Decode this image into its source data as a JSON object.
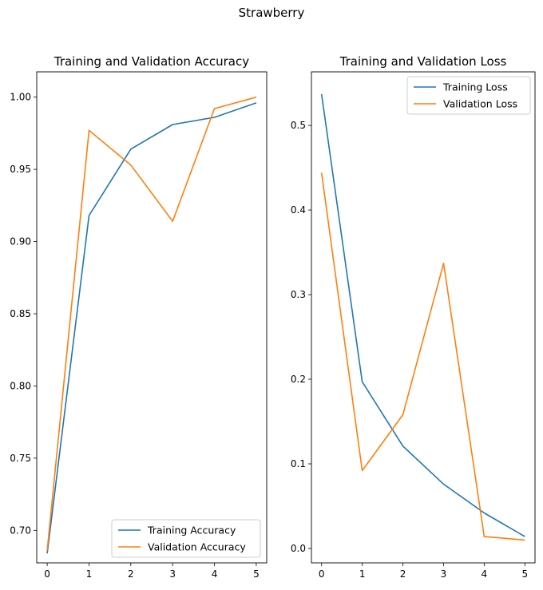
{
  "figure": {
    "suptitle": "Strawberry"
  },
  "colors": {
    "training": "#1f77b4",
    "validation": "#ff7f0e"
  },
  "chart_data": [
    {
      "type": "line",
      "title": "Training and Validation Accuracy",
      "xlabel": "",
      "ylabel": "",
      "x": [
        0,
        1,
        2,
        3,
        4,
        5
      ],
      "xticks": [
        "0",
        "1",
        "2",
        "3",
        "4",
        "5"
      ],
      "yticks": [
        "0.70",
        "0.75",
        "0.80",
        "0.85",
        "0.90",
        "0.95",
        "1.00"
      ],
      "xlim": [
        -0.25,
        5.25
      ],
      "ylim": [
        0.6775,
        1.0175
      ],
      "legend_loc": "lower right",
      "grid": false,
      "series": [
        {
          "name": "Training Accuracy",
          "color": "#1f77b4",
          "values": [
            0.684,
            0.918,
            0.964,
            0.981,
            0.986,
            0.996
          ]
        },
        {
          "name": "Validation Accuracy",
          "color": "#ff7f0e",
          "values": [
            0.686,
            0.977,
            0.953,
            0.914,
            0.992,
            1.0
          ]
        }
      ]
    },
    {
      "type": "line",
      "title": "Training and Validation Loss",
      "xlabel": "",
      "ylabel": "",
      "x": [
        0,
        1,
        2,
        3,
        4,
        5
      ],
      "xticks": [
        "0",
        "1",
        "2",
        "3",
        "4",
        "5"
      ],
      "yticks": [
        "0.0",
        "0.1",
        "0.2",
        "0.3",
        "0.4",
        "0.5"
      ],
      "xlim": [
        -0.25,
        5.25
      ],
      "ylim": [
        -0.017,
        0.5633
      ],
      "legend_loc": "upper right",
      "grid": false,
      "series": [
        {
          "name": "Training Loss",
          "color": "#1f77b4",
          "values": [
            0.537,
            0.197,
            0.121,
            0.076,
            0.042,
            0.014
          ]
        },
        {
          "name": "Validation Loss",
          "color": "#ff7f0e",
          "values": [
            0.444,
            0.092,
            0.158,
            0.337,
            0.014,
            0.01
          ]
        }
      ]
    }
  ]
}
